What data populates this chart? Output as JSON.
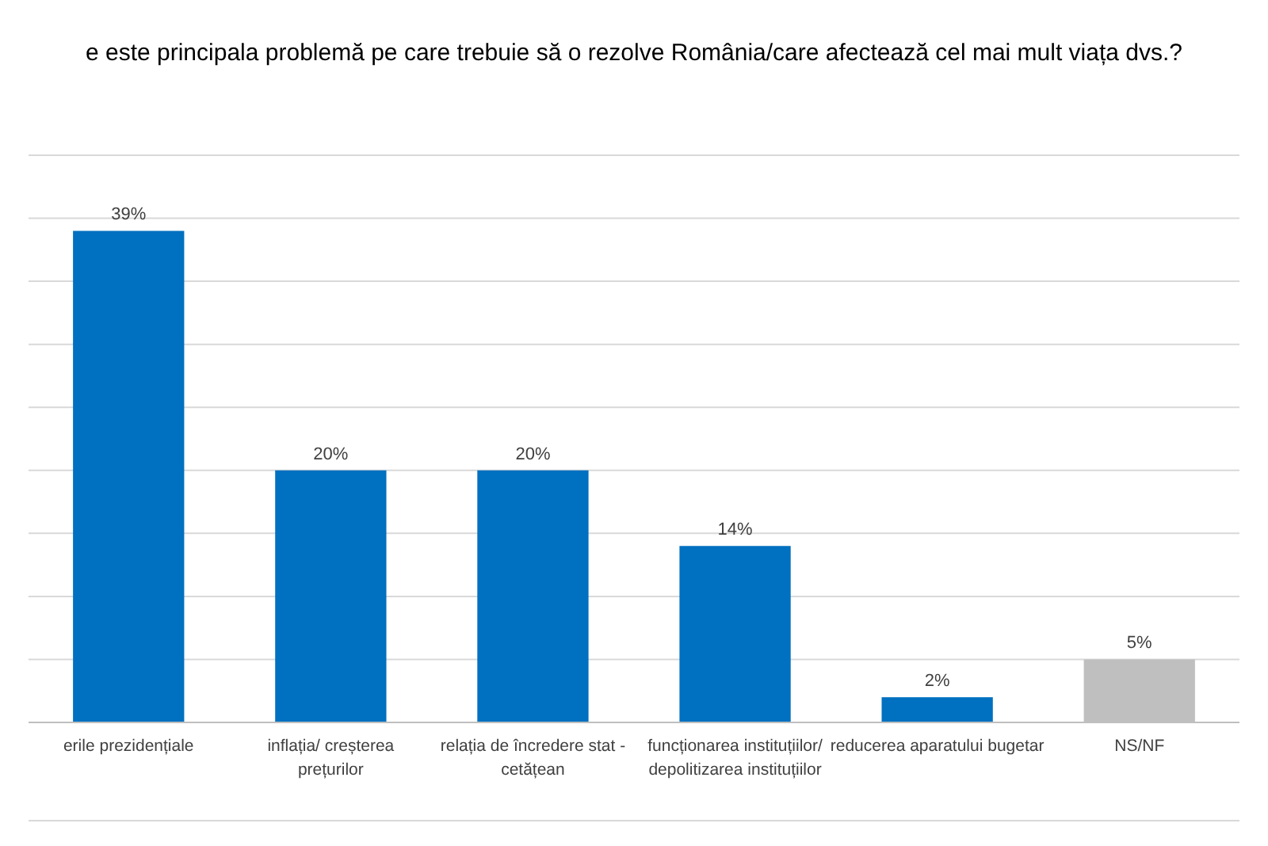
{
  "chart_data": {
    "type": "bar",
    "title": "e este principala problemă pe care trebuie să o rezolve România/care afectează cel mai mult viața dvs.?",
    "categories": [
      "erile  prezidențiale",
      "inflația/ creșterea prețurilor",
      "relația de încredere stat - cetățean",
      "funcționarea instituțiilor/ depolitizarea instituțiilor",
      "reducerea aparatului bugetar",
      "NS/NF"
    ],
    "values": [
      39,
      20,
      20,
      14,
      2,
      5
    ],
    "colors": [
      "#0070c0",
      "#0070c0",
      "#0070c0",
      "#0070c0",
      "#0070c0",
      "#bfbfbf"
    ],
    "value_labels": [
      "39%",
      "20%",
      "20%",
      "14%",
      "2%",
      "5%"
    ],
    "ylim": [
      0,
      45
    ],
    "yticks": [
      {
        "value": 0,
        "label": null
      },
      {
        "value": 5,
        "label": null
      },
      {
        "value": 10,
        "label": null
      },
      {
        "value": 15,
        "label": null
      },
      {
        "value": 20,
        "label": null
      },
      {
        "value": 25,
        "label": null
      },
      {
        "value": 30,
        "label": null
      },
      {
        "value": 35,
        "label": null
      },
      {
        "value": 40,
        "label": null
      },
      {
        "value": 45,
        "label": null
      }
    ],
    "grid": "y",
    "tick_labels": "x"
  }
}
